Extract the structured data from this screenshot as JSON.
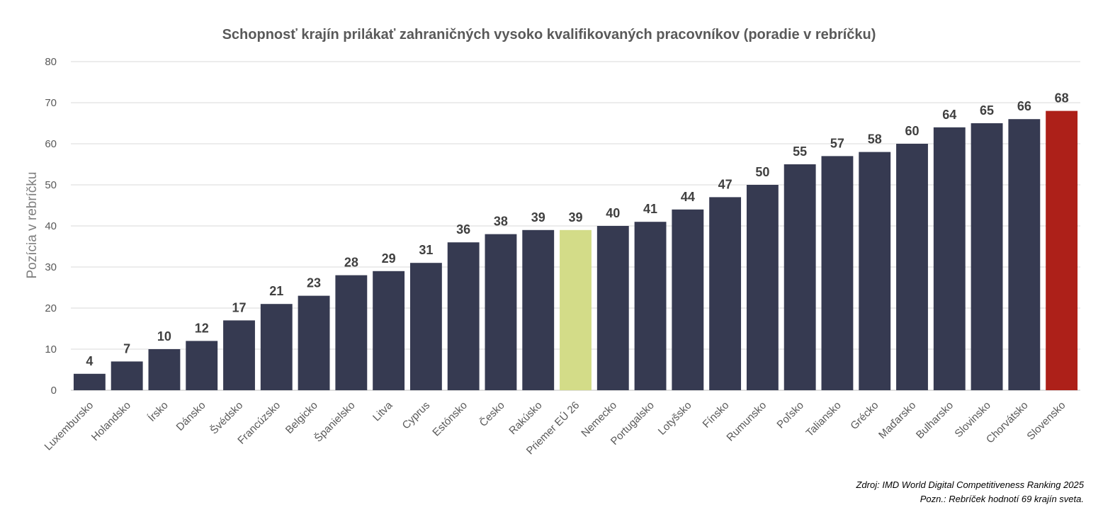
{
  "chart_data": {
    "type": "bar",
    "title": "Schopnosť krajín prilákať zahraničných vysoko kvalifikovaných pracovníkov (poradie v rebríčku)",
    "xlabel": "",
    "ylabel": "Pozícia v rebríčku",
    "ylim": [
      0,
      80
    ],
    "yticks": [
      0,
      10,
      20,
      30,
      40,
      50,
      60,
      70,
      80
    ],
    "grid": true,
    "legend": "none",
    "categories": [
      "Luxembursko",
      "Holandsko",
      "Írsko",
      "Dánsko",
      "Švédsko",
      "Francúzsko",
      "Belgicko",
      "Španielsko",
      "Litva",
      "Cyprus",
      "Estónsko",
      "Česko",
      "Rakúsko",
      "Priemer EÚ 26",
      "Nemecko",
      "Portugalsko",
      "Lotyšsko",
      "Fínsko",
      "Rumunsko",
      "Poľsko",
      "Taliansko",
      "Grécko",
      "Maďarsko",
      "Bulharsko",
      "Slovinsko",
      "Chorvátsko",
      "Slovensko"
    ],
    "values": [
      4,
      7,
      10,
      12,
      17,
      21,
      23,
      28,
      29,
      31,
      36,
      38,
      39,
      39,
      40,
      41,
      44,
      47,
      50,
      55,
      57,
      58,
      60,
      64,
      65,
      66,
      68
    ],
    "colors": {
      "default": "#363a51",
      "highlight_average": "#d3dc88",
      "highlight_slovakia": "#ad2019"
    },
    "highlight": {
      "Priemer EÚ 26": "highlight_average",
      "Slovensko": "highlight_slovakia"
    }
  },
  "notes": {
    "source": "Zdroj: IMD World Digital Competitiveness Ranking 2025",
    "remark": "Pozn.: Rebríček hodnotí 69 krajín sveta."
  }
}
